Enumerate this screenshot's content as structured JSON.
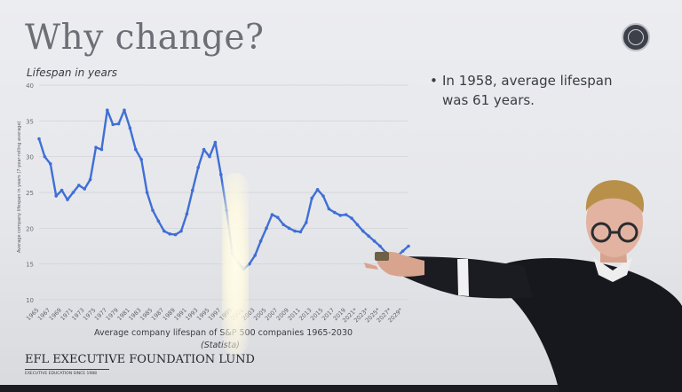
{
  "slide": {
    "title": "Why change?",
    "chart_heading": "Lifespan in years",
    "bullet_text": "In 1958, average lifespan was 61 years.",
    "caption": "Average company lifespan of S&P 500 companies 1965-2030",
    "source": "(Statista)",
    "logo_text": "EFL EXECUTIVE FOUNDATION LUND",
    "logo_tagline": "EXECUTIVE EDUCATION SINCE 1988"
  },
  "chart_data": {
    "type": "line",
    "ylabel": "Average company lifespan in years (7-year-rolling average)",
    "ylim": [
      10,
      40
    ],
    "yticks": [
      10,
      15,
      20,
      25,
      30,
      35,
      40
    ],
    "xlim": [
      1965,
      2030
    ],
    "xtick_labels": [
      "1965",
      "1967",
      "1969",
      "1971",
      "1973",
      "1975",
      "1977",
      "1979",
      "1981",
      "1983",
      "1985",
      "1987",
      "1989",
      "1991",
      "1993",
      "1995",
      "1997",
      "1999",
      "2001",
      "2003",
      "2005",
      "2007",
      "2009",
      "2011",
      "2013",
      "2015",
      "2017",
      "2019",
      "2021*",
      "2023*",
      "2025*",
      "2027*",
      "2029*"
    ],
    "grid": true,
    "color": "#3f6fd6",
    "series": [
      {
        "x": [
          1965,
          1966,
          1967,
          1968,
          1969,
          1970,
          1971,
          1972,
          1973,
          1974,
          1975,
          1976,
          1977,
          1978,
          1979,
          1980,
          1981,
          1982,
          1983,
          1984,
          1985,
          1986,
          1987,
          1988,
          1989,
          1990,
          1991,
          1992,
          1993,
          1994,
          1995,
          1996,
          1997,
          1998,
          1999,
          2000,
          2001,
          2002,
          2003,
          2004,
          2005,
          2006,
          2007,
          2008,
          2009,
          2010,
          2011,
          2012,
          2013,
          2014,
          2015,
          2016,
          2017,
          2018,
          2019,
          2020,
          2021,
          2022,
          2023,
          2024,
          2025,
          2026,
          2027,
          2028,
          2029,
          2030
        ],
        "values": [
          32.5,
          30,
          29,
          24.5,
          25.3,
          24,
          25,
          26,
          25.5,
          26.8,
          31.3,
          31,
          36.5,
          34.5,
          34.6,
          36.5,
          34,
          31,
          29.6,
          25,
          22.5,
          21,
          19.6,
          19.2,
          19.1,
          19.6,
          22,
          25.3,
          28.5,
          31,
          30,
          32,
          27.5,
          22.5,
          16.5,
          15.2,
          14.3,
          15,
          16.2,
          18.2,
          20,
          21.9,
          21.5,
          20.5,
          20,
          19.6,
          19.5,
          20.8,
          24.2,
          25.4,
          24.5,
          22.7,
          22.2,
          21.8,
          21.9,
          21.4,
          20.5,
          19.6,
          18.9,
          18.2,
          17.5,
          16.6,
          15.9,
          16.1,
          16.8,
          17.5
        ]
      }
    ]
  }
}
